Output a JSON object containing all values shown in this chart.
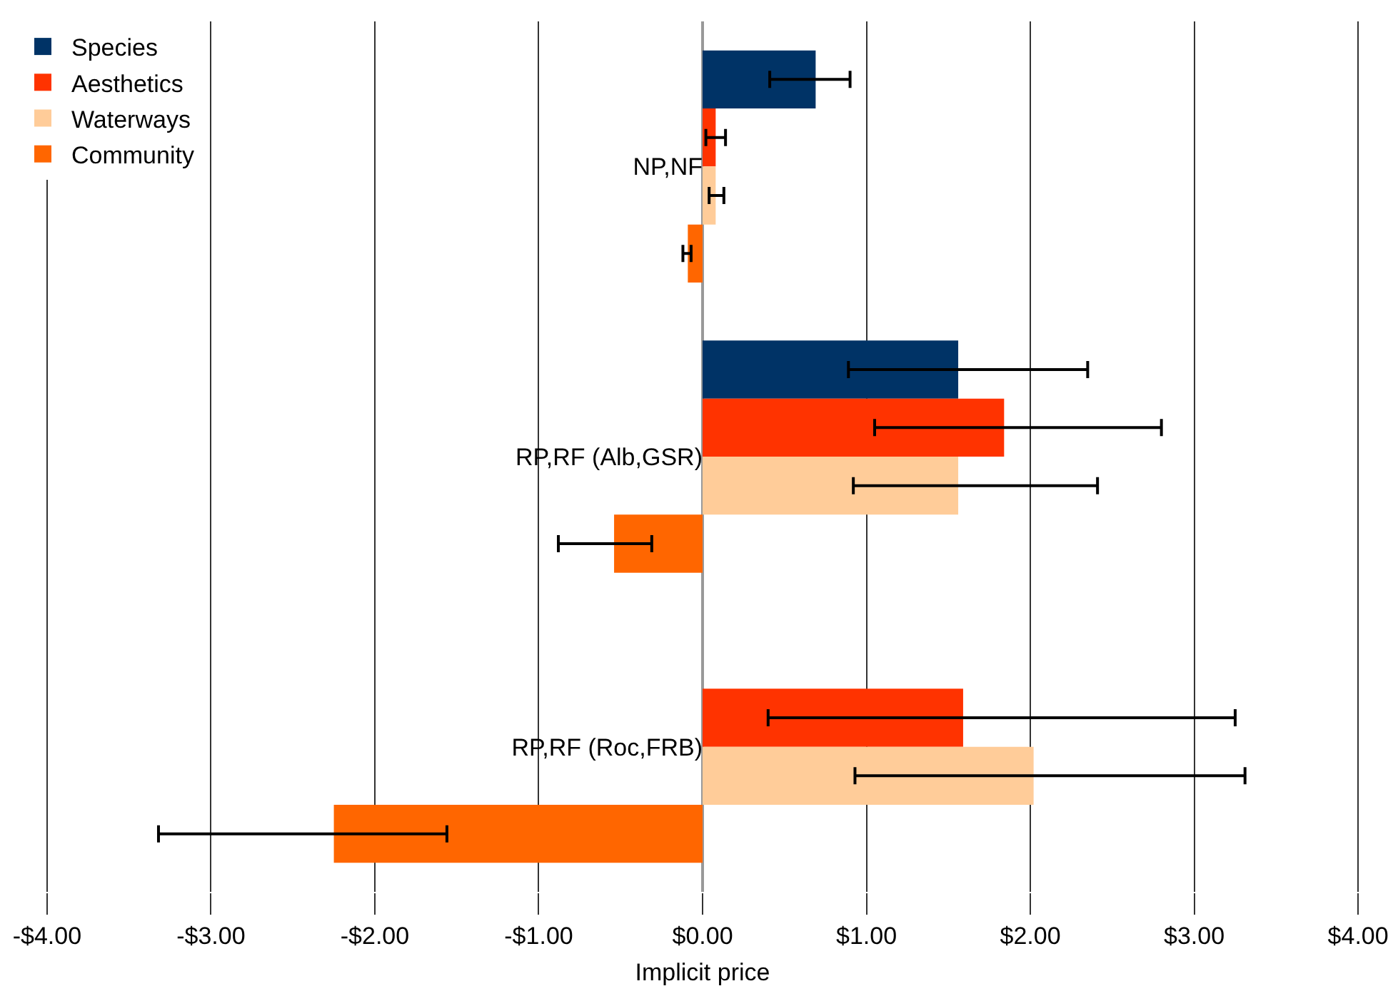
{
  "chart_data": {
    "type": "bar",
    "orientation": "horizontal",
    "xlabel": "Implicit price",
    "categories": [
      "NP,NF",
      "RP,RF (Alb,GSR)",
      "RP,RF (Roc,FRB)"
    ],
    "series": [
      {
        "name": "Species",
        "color": "#003366",
        "values": [
          0.69,
          1.56,
          null
        ],
        "errors": [
          [
            0.41,
            0.9
          ],
          [
            0.89,
            2.35
          ],
          null
        ]
      },
      {
        "name": "Aesthetics",
        "color": "#ff3300",
        "values": [
          0.08,
          1.84,
          1.59
        ],
        "errors": [
          [
            0.02,
            0.14
          ],
          [
            1.05,
            2.8
          ],
          [
            0.4,
            3.25
          ]
        ]
      },
      {
        "name": "Waterways",
        "color": "#ffcc99",
        "values": [
          0.08,
          1.56,
          2.02
        ],
        "errors": [
          [
            0.04,
            0.13
          ],
          [
            0.92,
            2.41
          ],
          [
            0.93,
            3.31
          ]
        ]
      },
      {
        "name": "Community",
        "color": "#ff6600",
        "values": [
          -0.09,
          -0.54,
          -2.25
        ],
        "errors": [
          [
            -0.12,
            -0.07
          ],
          [
            -0.88,
            -0.31
          ],
          [
            -3.32,
            -1.56
          ]
        ]
      }
    ],
    "xlim": [
      -4.2,
      4.2
    ],
    "xticks": [
      {
        "value": -4,
        "label": "-$4.00"
      },
      {
        "value": -3,
        "label": "-$3.00"
      },
      {
        "value": -2,
        "label": "-$2.00"
      },
      {
        "value": -1,
        "label": "-$1.00"
      },
      {
        "value": 0,
        "label": "$0.00"
      },
      {
        "value": 1,
        "label": "$1.00"
      },
      {
        "value": 2,
        "label": "$2.00"
      },
      {
        "value": 3,
        "label": "$3.00"
      },
      {
        "value": 4,
        "label": "$4.00"
      }
    ],
    "grid": "x",
    "legend": "top left"
  }
}
